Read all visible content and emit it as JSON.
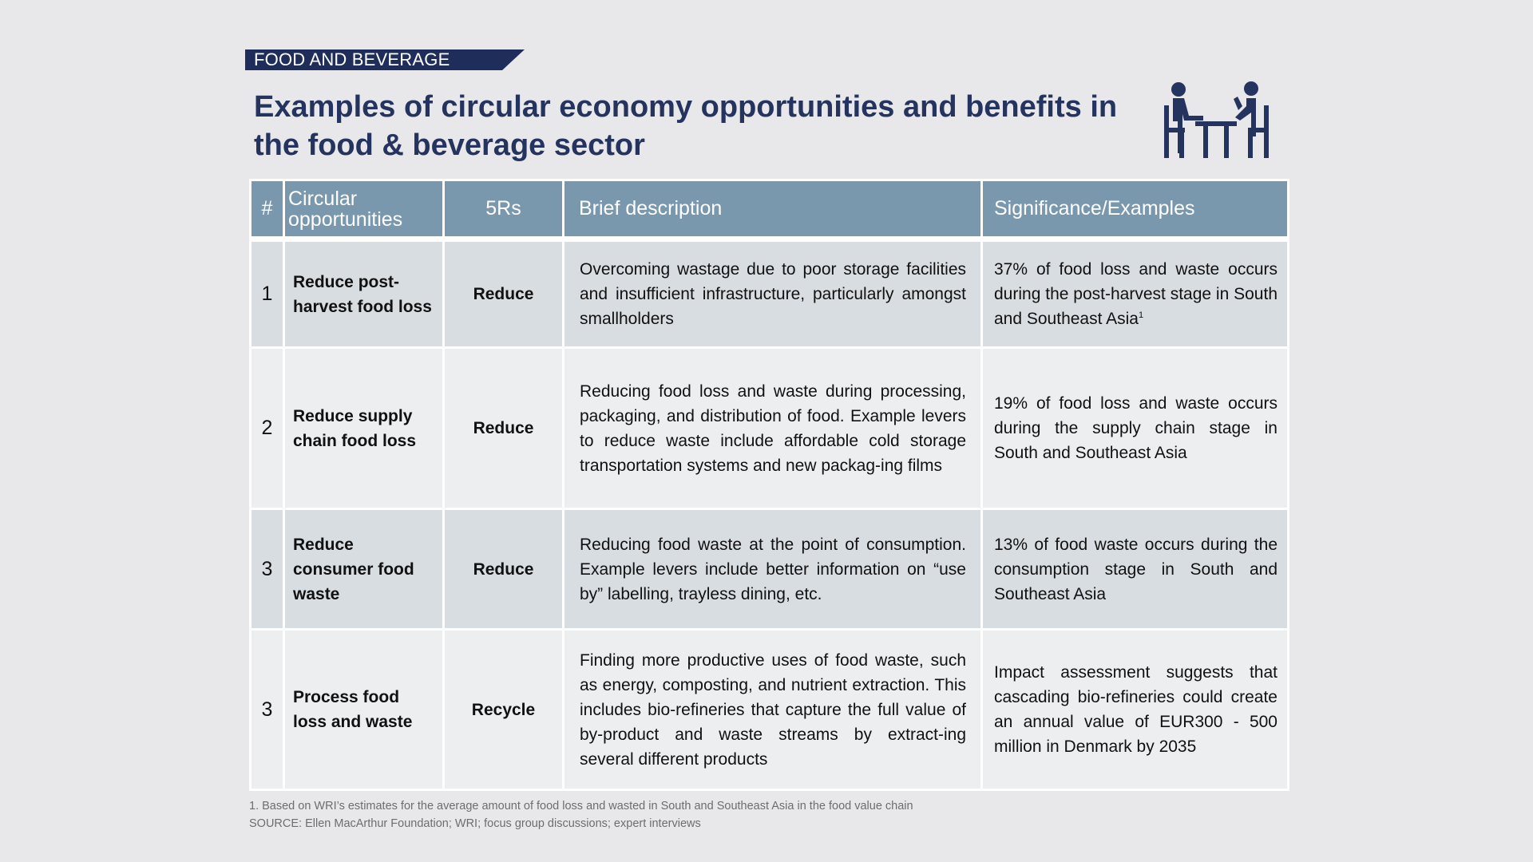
{
  "header": {
    "tag": "FOOD AND BEVERAGE",
    "title": "Examples of circular economy opportunities and benefits in the food & beverage sector",
    "icon": "people-at-table-icon"
  },
  "table": {
    "columns": [
      "#",
      "Circular opportunities",
      "5Rs",
      "Brief description",
      "Significance/Examples"
    ],
    "rows": [
      {
        "num": "1",
        "opportunity": "Reduce post-harvest food loss",
        "r": "Reduce",
        "description": "Overcoming wastage due to poor storage facilities and insufficient infrastructure, particularly amongst smallholders",
        "significance": "37% of food loss and waste occurs during the post-harvest stage in South and Southeast Asia",
        "footnote": "1"
      },
      {
        "num": "2",
        "opportunity": "Reduce supply chain food loss",
        "r": "Reduce",
        "description": "Reducing food loss and waste during processing, packaging, and distribution of food. Example levers to reduce waste include affordable cold storage transportation systems and new packag-ing films",
        "significance": "19% of food loss and waste occurs during the supply chain stage in South and Southeast Asia"
      },
      {
        "num": "3",
        "opportunity": "Reduce consumer food waste",
        "r": "Reduce",
        "description": "Reducing food waste at the point of consumption. Example levers include better information on “use by” labelling, trayless dining, etc.",
        "significance": "13% of food waste occurs during the consumption stage in South and Southeast Asia"
      },
      {
        "num": "3",
        "opportunity": "Process food loss and waste",
        "r": "Recycle",
        "description": "Finding more productive uses of food waste, such as energy, composting, and nutrient extraction. This includes bio-refineries that capture the full value of by-product and waste streams by extract-ing several different products",
        "significance": "Impact assessment suggests that cascading bio-refineries could create an annual value of EUR300 - 500 million in Denmark by 2035"
      }
    ]
  },
  "notes": {
    "footnote": "1.  Based on WRI’s estimates for the average amount of food loss and wasted in South and Southeast Asia in the food value chain",
    "source": "SOURCE: Ellen MacArthur Foundation; WRI; focus group discussions; expert interviews"
  }
}
